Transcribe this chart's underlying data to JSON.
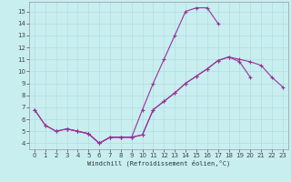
{
  "xlabel": "Windchill (Refroidissement éolien,°C)",
  "bg_color": "#c8eef0",
  "line_color": "#993399",
  "grid_color": "#b0dde0",
  "xlim": [
    -0.5,
    23.5
  ],
  "ylim": [
    3.5,
    15.8
  ],
  "yticks": [
    4,
    5,
    6,
    7,
    8,
    9,
    10,
    11,
    12,
    13,
    14,
    15
  ],
  "xticks": [
    0,
    1,
    2,
    3,
    4,
    5,
    6,
    7,
    8,
    9,
    10,
    11,
    12,
    13,
    14,
    15,
    16,
    17,
    18,
    19,
    20,
    21,
    22,
    23
  ],
  "line1_x": [
    0,
    1,
    2,
    3,
    4,
    5,
    6,
    7,
    8,
    9,
    10,
    11,
    12,
    13,
    14,
    15,
    16,
    17
  ],
  "line1_y": [
    6.8,
    5.5,
    5.0,
    5.2,
    5.0,
    4.8,
    4.0,
    4.5,
    4.5,
    4.5,
    6.8,
    9.0,
    11.0,
    13.0,
    15.0,
    15.3,
    15.3,
    14.0
  ],
  "line2_x": [
    0,
    1,
    2,
    3,
    4,
    5,
    6,
    7,
    8,
    9,
    10,
    11,
    12,
    13,
    14,
    15,
    16,
    17,
    18,
    19,
    20
  ],
  "line2_y": [
    6.8,
    5.5,
    5.0,
    5.2,
    5.0,
    4.8,
    4.0,
    4.5,
    4.5,
    4.5,
    4.7,
    6.8,
    7.5,
    8.2,
    9.0,
    9.6,
    10.2,
    10.9,
    11.2,
    10.8,
    9.5
  ],
  "line3_x": [
    3,
    4,
    5,
    6,
    7,
    8,
    9,
    10,
    11,
    12,
    13,
    14,
    15,
    16,
    17,
    18,
    19,
    20,
    21,
    22,
    23
  ],
  "line3_y": [
    5.2,
    5.0,
    4.8,
    4.0,
    4.5,
    4.5,
    4.5,
    4.7,
    6.8,
    7.5,
    8.2,
    9.0,
    9.6,
    10.2,
    10.9,
    11.2,
    11.0,
    10.8,
    10.5,
    9.5,
    8.7
  ],
  "tick_color": "#444444",
  "tick_fontsize": 5.0,
  "xlabel_fontsize": 5.0
}
